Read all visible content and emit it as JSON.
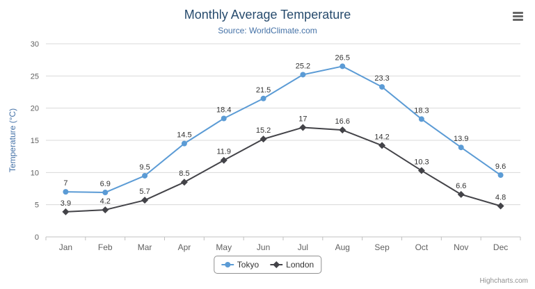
{
  "chart_data": {
    "type": "line",
    "title": "Monthly Average Temperature",
    "subtitle": "Source: WorldClimate.com",
    "categories": [
      "Jan",
      "Feb",
      "Mar",
      "Apr",
      "May",
      "Jun",
      "Jul",
      "Aug",
      "Sep",
      "Oct",
      "Nov",
      "Dec"
    ],
    "series": [
      {
        "name": "Tokyo",
        "color": "#5b9bd5",
        "marker": "circle",
        "values": [
          7,
          6.9,
          9.5,
          14.5,
          18.4,
          21.5,
          25.2,
          26.5,
          23.3,
          18.3,
          13.9,
          9.6
        ]
      },
      {
        "name": "London",
        "color": "#434348",
        "marker": "diamond",
        "values": [
          3.9,
          4.2,
          5.7,
          8.5,
          11.9,
          15.2,
          17,
          16.6,
          14.2,
          10.3,
          6.6,
          4.8
        ]
      }
    ],
    "xlabel": "",
    "ylabel": "Temperature (°C)",
    "ylim": [
      0,
      30
    ],
    "ytick_step": 5,
    "grid": true,
    "legend_position": "bottom",
    "data_labels_visible": true
  },
  "credits": {
    "label": "Highcharts.com"
  },
  "icons": {
    "context_menu": "hamburger-icon"
  },
  "colors": {
    "title": "#274b6d",
    "subtitle": "#4572a7",
    "axis_title": "#4572a7",
    "tick_text": "#606060",
    "gridline": "#d8d8d8",
    "axis_line": "#c0c0c0",
    "data_label": "#333333"
  }
}
